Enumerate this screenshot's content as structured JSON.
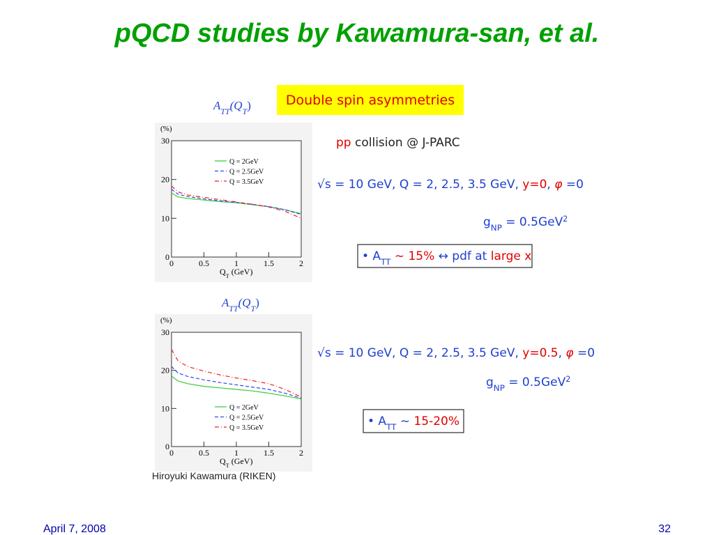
{
  "slide": {
    "title": "pQCD studies by Kawamura-san, et al.",
    "date": "April 7, 2008",
    "page_number": "32",
    "credit": "Hiroyuki Kawamura (RIKEN)"
  },
  "highlight": "Double spin asymmetries",
  "collision": [
    "pp",
    " collision @ J-PARC"
  ],
  "kinematics_1": [
    "√s = 10 GeV,  Q = 2, 2.5, 3.5 GeV,  ",
    "y=0",
    ",  ",
    "φ",
    " =0"
  ],
  "gnp_1": [
    "g",
    "NP",
    " = 0.5GeV",
    "2"
  ],
  "note_1": [
    "• A",
    "TT",
    " ∼ 15%",
    "  ↔  pdf at ",
    "large x"
  ],
  "kinematics_2": [
    "√s = 10 GeV,  Q = 2, 2.5, 3.5 GeV,  ",
    "y=0.5",
    ",  ",
    "φ",
    " =0"
  ],
  "gnp_2": [
    "g",
    "NP",
    " = 0.5GeV",
    "2"
  ],
  "note_2": [
    "• A",
    "TT",
    " ∼ ",
    "15-20%"
  ],
  "chart_data": [
    {
      "type": "line",
      "title": [
        "A",
        "TT",
        "(Q",
        "T",
        ")"
      ],
      "ylabel": "(%)",
      "xlabel": [
        "Q",
        "T",
        " (GeV)"
      ],
      "xlim": [
        0,
        2
      ],
      "ylim": [
        0,
        30
      ],
      "xticks": [
        0,
        0.5,
        1,
        1.5,
        2
      ],
      "yticks": [
        0,
        10,
        20,
        30
      ],
      "x": [
        0,
        0.1,
        0.25,
        0.5,
        0.75,
        1,
        1.25,
        1.5,
        1.75,
        2
      ],
      "series": [
        {
          "name": "Q = 2GeV",
          "color": "#33cc33",
          "linestyle": "solid",
          "values": [
            16.5,
            15.5,
            15.1,
            14.7,
            14.3,
            14.0,
            13.5,
            13.0,
            12.2,
            11.2
          ]
        },
        {
          "name": "Q = 2.5GeV",
          "color": "#3344ee",
          "linestyle": "dashed",
          "values": [
            17.5,
            16.2,
            15.6,
            15.0,
            14.5,
            14.1,
            13.6,
            13.0,
            12.2,
            11.0
          ]
        },
        {
          "name": "Q = 3.5GeV",
          "color": "#ee2222",
          "linestyle": "dashdot",
          "values": [
            18.3,
            16.8,
            16.0,
            15.4,
            14.8,
            14.2,
            13.6,
            12.9,
            11.8,
            10.0
          ]
        }
      ]
    },
    {
      "type": "line",
      "title": [
        "A",
        "TT",
        "(Q",
        "T",
        ")"
      ],
      "ylabel": "(%)",
      "xlabel": [
        "Q",
        "T",
        " (GeV)"
      ],
      "xlim": [
        0,
        2
      ],
      "ylim": [
        0,
        30
      ],
      "xticks": [
        0,
        0.5,
        1,
        1.5,
        2
      ],
      "yticks": [
        0,
        10,
        20,
        30
      ],
      "x": [
        0,
        0.1,
        0.25,
        0.5,
        0.75,
        1,
        1.25,
        1.5,
        1.75,
        2
      ],
      "series": [
        {
          "name": "Q = 2GeV",
          "color": "#33cc33",
          "linestyle": "solid",
          "values": [
            18.5,
            17.2,
            16.5,
            15.8,
            15.4,
            15.0,
            14.6,
            14.0,
            13.3,
            12.5
          ]
        },
        {
          "name": "Q = 2.5GeV",
          "color": "#3344ee",
          "linestyle": "dashed",
          "values": [
            21.0,
            19.3,
            18.4,
            17.5,
            16.8,
            16.2,
            15.6,
            15.0,
            14.0,
            12.7
          ]
        },
        {
          "name": "Q = 3.5GeV",
          "color": "#ee2222",
          "linestyle": "dashdot",
          "values": [
            25.5,
            22.5,
            21.0,
            19.8,
            18.8,
            18.0,
            17.3,
            16.5,
            15.0,
            13.0
          ]
        }
      ]
    }
  ]
}
